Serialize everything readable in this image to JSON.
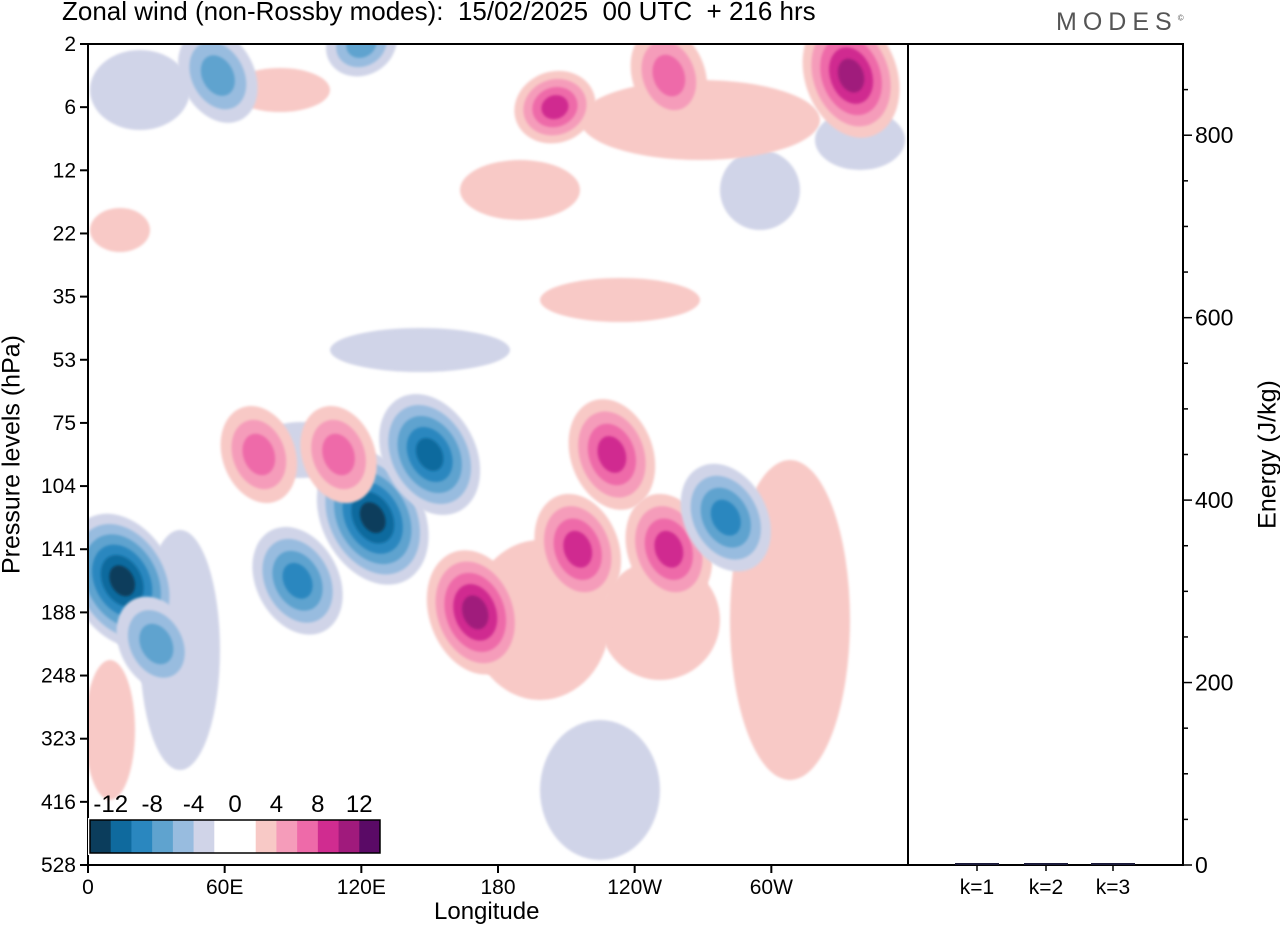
{
  "title": "Zonal wind (non-Rossby modes):  15/02/2025  00 UTC  + 216 hrs",
  "logo": "MODES",
  "colors": {
    "neg": [
      "#0b3d5c",
      "#0f6a9e",
      "#2a87bf",
      "#5fa3cf",
      "#98bcdf",
      "#d0d4e8"
    ],
    "pos": [
      "#f8c9c6",
      "#f59cba",
      "#ee6aa9",
      "#d02c90",
      "#a01a7c",
      "#5a0a66"
    ],
    "zero": "#ffffff"
  },
  "chart_data": [
    {
      "type": "heatmap",
      "title": "Zonal wind (non-Rossby modes):  15/02/2025  00 UTC  + 216 hrs",
      "xlabel": "Longitude",
      "ylabel": "Pressure levels (hPa)",
      "x_ticks": [
        "0",
        "60E",
        "120E",
        "180",
        "120W",
        "60W"
      ],
      "y_ticks": [
        "2",
        "6",
        "12",
        "22",
        "35",
        "53",
        "75",
        "104",
        "141",
        "188",
        "248",
        "323",
        "416",
        "528"
      ],
      "colorbar_labels": [
        "-12",
        "-8",
        "-4",
        "0",
        "4",
        "8",
        "12"
      ],
      "colorbar_levels": [
        -14,
        -12,
        -10,
        -8,
        -6,
        -4,
        -2,
        2,
        4,
        6,
        8,
        10,
        12,
        14
      ],
      "features": [
        {
          "lon": 15,
          "level": "141-188",
          "value": -12
        },
        {
          "lon": 30,
          "level": "188-248",
          "value": -6
        },
        {
          "lon": 92,
          "level": "141-188",
          "value": -8
        },
        {
          "lon": 125,
          "level": "104-141",
          "value": -12
        },
        {
          "lon": 150,
          "level": "75-104",
          "value": -10
        },
        {
          "lon": 170,
          "level": "141-248",
          "value": 10
        },
        {
          "lon": 215,
          "level": "104-188",
          "value": 8
        },
        {
          "lon": 230,
          "level": "75-104",
          "value": 8
        },
        {
          "lon": 255,
          "level": "104-188",
          "value": 8
        },
        {
          "lon": 280,
          "level": "104-141",
          "value": -8
        },
        {
          "lon": 75,
          "level": "75-104",
          "value": 6
        },
        {
          "lon": 110,
          "level": "75-104",
          "value": 6
        },
        {
          "lon": 335,
          "level": "2-6",
          "value": 10
        },
        {
          "lon": 255,
          "level": "2-6",
          "value": 6
        },
        {
          "lon": 205,
          "level": "6",
          "value": 8
        },
        {
          "lon": 57,
          "level": "2-6",
          "value": -6
        },
        {
          "lon": 120,
          "level": "2",
          "value": -6
        }
      ]
    },
    {
      "type": "bar",
      "ylabel": "Energy (J/kg)",
      "categories": [
        "k=1",
        "k=2",
        "k=3"
      ],
      "values": [
        1,
        1,
        1.5
      ],
      "ylim": [
        0,
        900
      ],
      "y_ticks": [
        "0",
        "200",
        "400",
        "600",
        "800"
      ]
    }
  ]
}
